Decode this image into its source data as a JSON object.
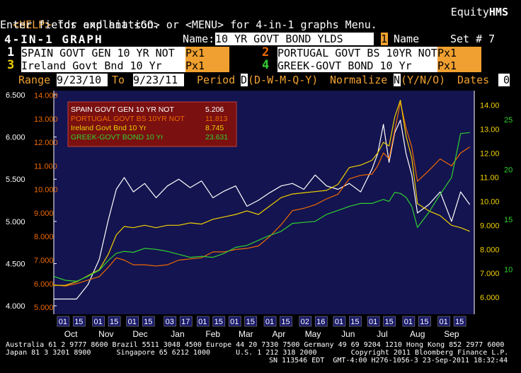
{
  "header": {
    "help_key": "<HELP>",
    "help_text": " for explanation.",
    "brand_prefix": "Equity",
    "brand_suffix": "HMS",
    "instructions": "Enter fields and hit <GO> or <MENU> for 4-in-1 graphs Menu.",
    "screen_title": "4-IN-1 GRAPH",
    "name_label": "Name:",
    "name_value": "10 YR GOVT BOND YLDS",
    "name_flag": "1",
    "name_suffix": "Name",
    "set_label": "Set # 7"
  },
  "securities": [
    {
      "num": "1",
      "name": "SPAIN GOVT GEN  10 YR NOT",
      "field": "Px1",
      "color": "#ffffff"
    },
    {
      "num": "2",
      "name": "PORTUGAL GOVT BS 10YR NOT",
      "field": "Px1",
      "color": "#f06a00"
    },
    {
      "num": "3",
      "name": "Ireland Govt Bnd 10 Yr",
      "field": "Px1",
      "color": "#f0d000"
    },
    {
      "num": "4",
      "name": "GREEK-GOVT BOND 10 Yr",
      "field": "Px1",
      "color": "#30d030"
    }
  ],
  "controls": {
    "range_label": "Range",
    "range_from": "9/23/10",
    "to_label": "To",
    "range_to": "9/23/11",
    "period_label": "Period",
    "period_value": "D",
    "period_options": "(D-W-M-Q-Y)",
    "normalize_label": "Normalize",
    "normalize_value": "N",
    "normalize_options": "(Y/N/O)",
    "dates_label": "Dates",
    "dates_value": "0"
  },
  "footer": {
    "line1": "Australia 61 2 9777 8600 Brazil 5511 3048 4500 Europe 44 20 7330 7500 Germany 49 69 9204 1210 Hong Kong 852 2977 6000",
    "line2": "Japan 81 3 3201 8900      Singapore 65 6212 1000      U.S. 1 212 318 2000        Copyright 2011 Bloomberg Finance L.P.",
    "line3": "SN 113546 EDT  GMT-4:00 H276-1056-3 23-Sep-2011 18:32:44"
  },
  "chart_data": {
    "type": "line",
    "background": "#141450",
    "legend_position": "top-left",
    "legend": [
      {
        "name": "SPAIN GOVT GEN 10 YR NOT",
        "value": "5.206",
        "color": "#ffffff"
      },
      {
        "name": "PORTUGAL GOVT BS 10YR NOT",
        "value": "11.813",
        "color": "#f06a00"
      },
      {
        "name": "Ireland Govt Bnd 10 Yr",
        "value": "8.745",
        "color": "#f0d000"
      },
      {
        "name": "GREEK-GOVT BOND 10 Yr",
        "value": "23.631",
        "color": "#30d030"
      }
    ],
    "axes": {
      "spain": {
        "side": "left-outer",
        "color": "#ffffff",
        "min": 3.9,
        "max": 6.55,
        "ticks": [
          "4.000",
          "4.500",
          "5.000",
          "5.500",
          "6.000",
          "6.500"
        ]
      },
      "portugal": {
        "side": "left-inner",
        "color": "#f06a00",
        "min": 4.7,
        "max": 14.2,
        "ticks": [
          "5.000",
          "6.000",
          "7.000",
          "8.000",
          "9.000",
          "10.000",
          "11.000",
          "12.000",
          "13.000",
          "14.000"
        ]
      },
      "ireland": {
        "side": "right-inner",
        "color": "#f0d000",
        "min": 5.3,
        "max": 14.6,
        "ticks": [
          "6.000",
          "7.000",
          "8.000",
          "9.000",
          "10.00",
          "11.00",
          "12.00",
          "13.00",
          "14.00"
        ]
      },
      "greece": {
        "side": "right-outer",
        "color": "#30d030",
        "min": 5.5,
        "max": 27.9,
        "ticks": [
          "10",
          "15",
          "20",
          "25"
        ]
      }
    },
    "x_day_labels": [
      "01",
      "15",
      "01",
      "15",
      "01",
      "15",
      "03",
      "17",
      "01",
      "15",
      "01",
      "15",
      "01",
      "15",
      "02",
      "16",
      "01",
      "15",
      "01",
      "15",
      "01",
      "15",
      "01",
      "15"
    ],
    "x_month_labels": [
      "Oct",
      "Nov",
      "Dec",
      "Jan",
      "Feb",
      "Mar",
      "Apr",
      "May",
      "Jun",
      "Jul",
      "Aug",
      "Sep"
    ],
    "x_day_ticks": [
      8,
      22,
      39,
      53,
      69,
      83,
      102,
      116,
      131,
      145,
      159,
      173,
      190,
      204,
      221,
      235,
      251,
      265,
      281,
      295,
      312,
      326,
      343,
      357
    ],
    "x_month_ticks": [
      15,
      46,
      76,
      109,
      140,
      169,
      198,
      228,
      259,
      289,
      320,
      350
    ],
    "series": [
      {
        "name": "SPAIN GOVT GEN 10 YR NOT",
        "axis": "spain",
        "color": "#ffffff",
        "x": [
          0,
          10,
          20,
          30,
          40,
          48,
          55,
          62,
          70,
          80,
          90,
          100,
          110,
          120,
          130,
          140,
          150,
          160,
          170,
          180,
          190,
          200,
          210,
          220,
          230,
          240,
          250,
          260,
          270,
          280,
          285,
          290,
          295,
          300,
          305,
          310,
          315,
          320,
          330,
          340,
          350,
          358,
          366
        ],
        "y": [
          4.08,
          4.08,
          4.08,
          4.25,
          4.55,
          5.02,
          5.38,
          5.52,
          5.35,
          5.45,
          5.28,
          5.42,
          5.5,
          5.4,
          5.48,
          5.28,
          5.36,
          5.42,
          5.18,
          5.25,
          5.34,
          5.42,
          5.45,
          5.38,
          5.55,
          5.42,
          5.38,
          5.45,
          5.35,
          5.62,
          5.8,
          6.15,
          5.7,
          6.05,
          6.2,
          5.8,
          5.55,
          5.1,
          5.2,
          5.35,
          5.0,
          5.35,
          5.2
        ]
      },
      {
        "name": "PORTUGAL GOVT BS 10YR NOT",
        "axis": "portugal",
        "color": "#f06a00",
        "x": [
          0,
          10,
          20,
          30,
          40,
          48,
          55,
          62,
          70,
          80,
          90,
          100,
          110,
          120,
          130,
          140,
          150,
          160,
          170,
          180,
          190,
          200,
          210,
          220,
          230,
          240,
          250,
          260,
          270,
          280,
          285,
          290,
          295,
          300,
          305,
          310,
          315,
          320,
          330,
          340,
          350,
          358,
          366
        ],
        "y": [
          5.95,
          5.9,
          6.0,
          6.15,
          6.3,
          6.7,
          7.1,
          7.0,
          6.8,
          6.8,
          6.75,
          6.8,
          7.0,
          7.05,
          7.1,
          7.35,
          7.35,
          7.45,
          7.5,
          7.6,
          8.0,
          8.5,
          9.1,
          9.2,
          9.35,
          9.6,
          9.8,
          10.45,
          10.6,
          10.65,
          11.0,
          11.55,
          11.3,
          12.5,
          13.7,
          12.6,
          11.8,
          10.35,
          10.8,
          11.3,
          11.0,
          11.55,
          11.8
        ]
      },
      {
        "name": "Ireland Govt Bnd 10 Yr",
        "axis": "ireland",
        "color": "#f0d000",
        "x": [
          0,
          10,
          20,
          30,
          40,
          48,
          55,
          62,
          70,
          80,
          90,
          100,
          110,
          120,
          130,
          140,
          150,
          160,
          170,
          180,
          190,
          200,
          210,
          220,
          230,
          240,
          250,
          260,
          270,
          280,
          285,
          290,
          295,
          300,
          305,
          310,
          315,
          320,
          330,
          340,
          350,
          358,
          366
        ],
        "y": [
          6.5,
          6.5,
          6.65,
          6.9,
          7.15,
          7.8,
          8.6,
          8.95,
          8.9,
          9.0,
          8.9,
          9.0,
          9.0,
          9.1,
          9.05,
          9.25,
          9.35,
          9.45,
          9.6,
          9.45,
          9.8,
          10.15,
          10.3,
          10.35,
          10.4,
          10.45,
          10.7,
          11.4,
          11.5,
          11.7,
          12.0,
          12.45,
          12.3,
          13.5,
          14.2,
          12.7,
          11.8,
          9.9,
          9.6,
          9.4,
          9.0,
          8.9,
          8.75
        ]
      },
      {
        "name": "GREEK-GOVT BOND 10 Yr",
        "axis": "greece",
        "color": "#30d030",
        "x": [
          0,
          10,
          20,
          30,
          40,
          48,
          55,
          62,
          70,
          80,
          90,
          100,
          110,
          120,
          130,
          140,
          150,
          160,
          170,
          180,
          190,
          200,
          210,
          220,
          230,
          240,
          250,
          260,
          270,
          280,
          285,
          290,
          295,
          300,
          305,
          310,
          315,
          320,
          330,
          340,
          350,
          358,
          366
        ],
        "y": [
          9.3,
          8.9,
          8.8,
          9.3,
          9.9,
          10.9,
          11.6,
          11.8,
          11.7,
          12.1,
          12.0,
          11.8,
          11.5,
          11.2,
          11.3,
          11.2,
          11.6,
          12.2,
          12.4,
          12.9,
          13.4,
          13.8,
          14.6,
          14.7,
          14.8,
          15.5,
          15.9,
          16.3,
          16.6,
          16.6,
          16.8,
          17.0,
          16.8,
          17.7,
          17.6,
          17.2,
          16.3,
          14.2,
          15.7,
          17.5,
          19.2,
          23.6,
          23.7
        ]
      }
    ]
  }
}
